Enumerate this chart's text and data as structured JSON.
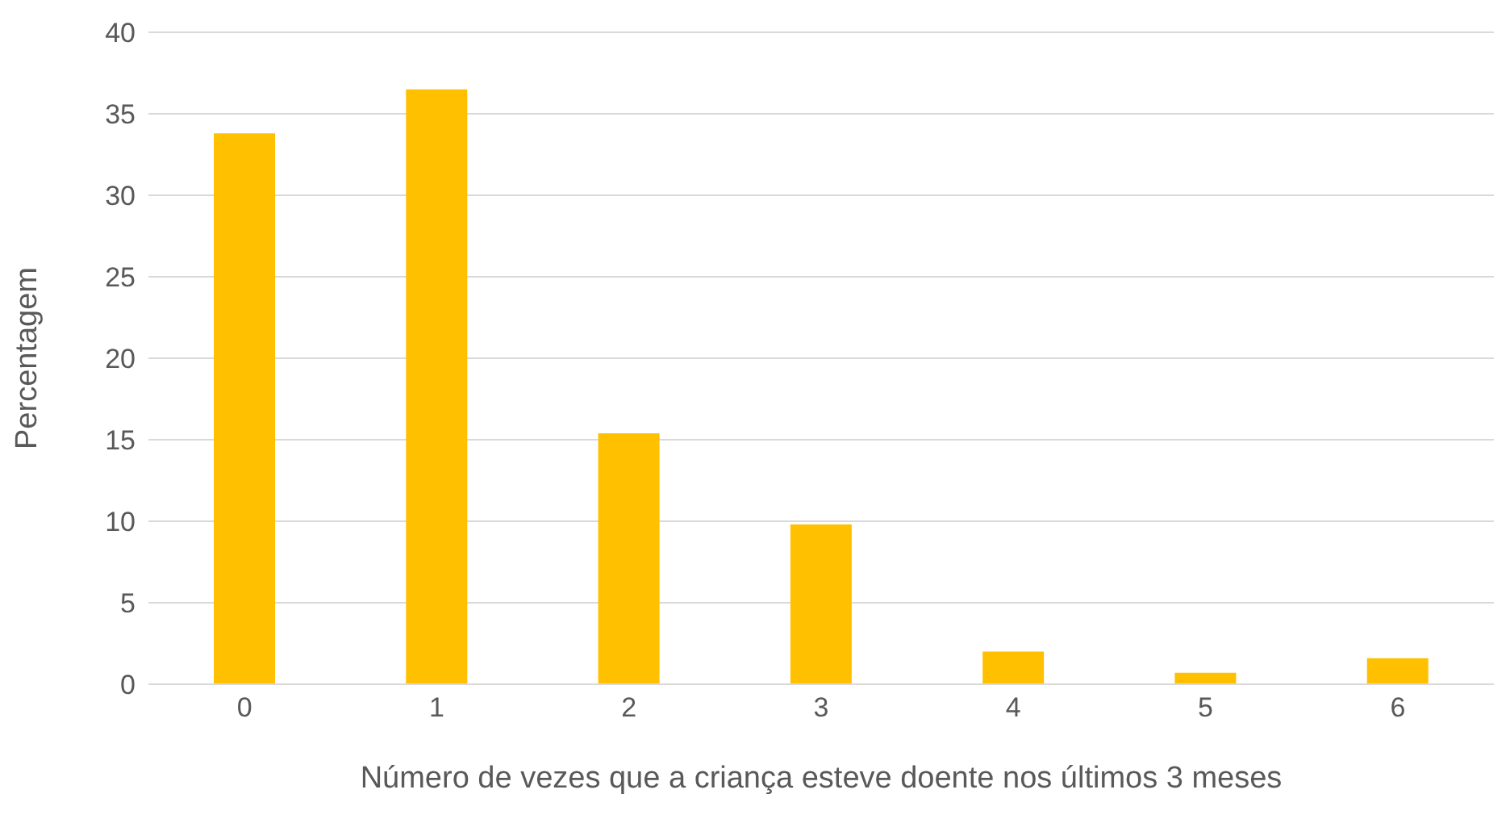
{
  "chart_data": {
    "type": "bar",
    "xlabel": "Número de vezes que a criança esteve doente nos últimos 3 meses",
    "ylabel": "Percentagem",
    "categories": [
      "0",
      "1",
      "2",
      "3",
      "4",
      "5",
      "6"
    ],
    "values": [
      33.8,
      36.5,
      15.4,
      9.8,
      2.0,
      0.7,
      1.6
    ],
    "color": "#ffc000",
    "ylim": [
      0,
      40
    ],
    "yticks": [
      0,
      5,
      10,
      15,
      20,
      25,
      30,
      35,
      40
    ],
    "grid": "y"
  }
}
